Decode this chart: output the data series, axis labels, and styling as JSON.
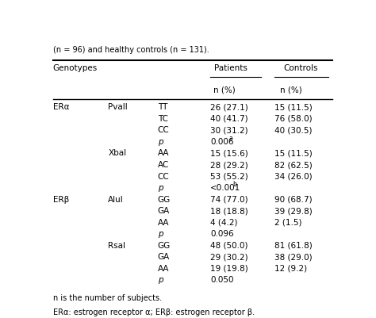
{
  "title_line": "(n = 96) and healthy controls (n = 131).",
  "header_col1": "Genotypes",
  "header_patients": "Patients",
  "header_controls": "Controls",
  "header_n": "n (%)",
  "rows": [
    {
      "col1": "ERα",
      "col2": "PvaII",
      "col3": "TT",
      "patients": "26 (27.1)",
      "controls": "15 (11.5)",
      "p_sup": ""
    },
    {
      "col1": "",
      "col2": "",
      "col3": "TC",
      "patients": "40 (41.7)",
      "controls": "76 (58.0)",
      "p_sup": ""
    },
    {
      "col1": "",
      "col2": "",
      "col3": "CC",
      "patients": "30 (31.2)",
      "controls": "40 (30.5)",
      "p_sup": ""
    },
    {
      "col1": "",
      "col2": "",
      "col3": "p",
      "patients": "0.006",
      "controls": "",
      "p_sup": "a"
    },
    {
      "col1": "",
      "col2": "XbaI",
      "col3": "AA",
      "patients": "15 (15.6)",
      "controls": "15 (11.5)",
      "p_sup": ""
    },
    {
      "col1": "",
      "col2": "",
      "col3": "AC",
      "patients": "28 (29.2)",
      "controls": "82 (62.5)",
      "p_sup": ""
    },
    {
      "col1": "",
      "col2": "",
      "col3": "CC",
      "patients": "53 (55.2)",
      "controls": "34 (26.0)",
      "p_sup": ""
    },
    {
      "col1": "",
      "col2": "",
      "col3": "p",
      "patients": "<0.001",
      "controls": "",
      "p_sup": "b"
    },
    {
      "col1": "ERβ",
      "col2": "AluI",
      "col3": "GG",
      "patients": "74 (77.0)",
      "controls": "90 (68.7)",
      "p_sup": ""
    },
    {
      "col1": "",
      "col2": "",
      "col3": "GA",
      "patients": "18 (18.8)",
      "controls": "39 (29.8)",
      "p_sup": ""
    },
    {
      "col1": "",
      "col2": "",
      "col3": "AA",
      "patients": "4 (4.2)",
      "controls": "2 (1.5)",
      "p_sup": ""
    },
    {
      "col1": "",
      "col2": "",
      "col3": "p",
      "patients": "0.096",
      "controls": "",
      "p_sup": ""
    },
    {
      "col1": "",
      "col2": "RsaI",
      "col3": "GG",
      "patients": "48 (50.0)",
      "controls": "81 (61.8)",
      "p_sup": ""
    },
    {
      "col1": "",
      "col2": "",
      "col3": "GA",
      "patients": "29 (30.2)",
      "controls": "38 (29.0)",
      "p_sup": ""
    },
    {
      "col1": "",
      "col2": "",
      "col3": "AA",
      "patients": "19 (19.8)",
      "controls": "12 (9.2)",
      "p_sup": ""
    },
    {
      "col1": "",
      "col2": "",
      "col3": "p",
      "patients": "0.050",
      "controls": "",
      "p_sup": ""
    }
  ],
  "bg_color": "#ffffff",
  "text_color": "#000000",
  "font_size": 7.5
}
